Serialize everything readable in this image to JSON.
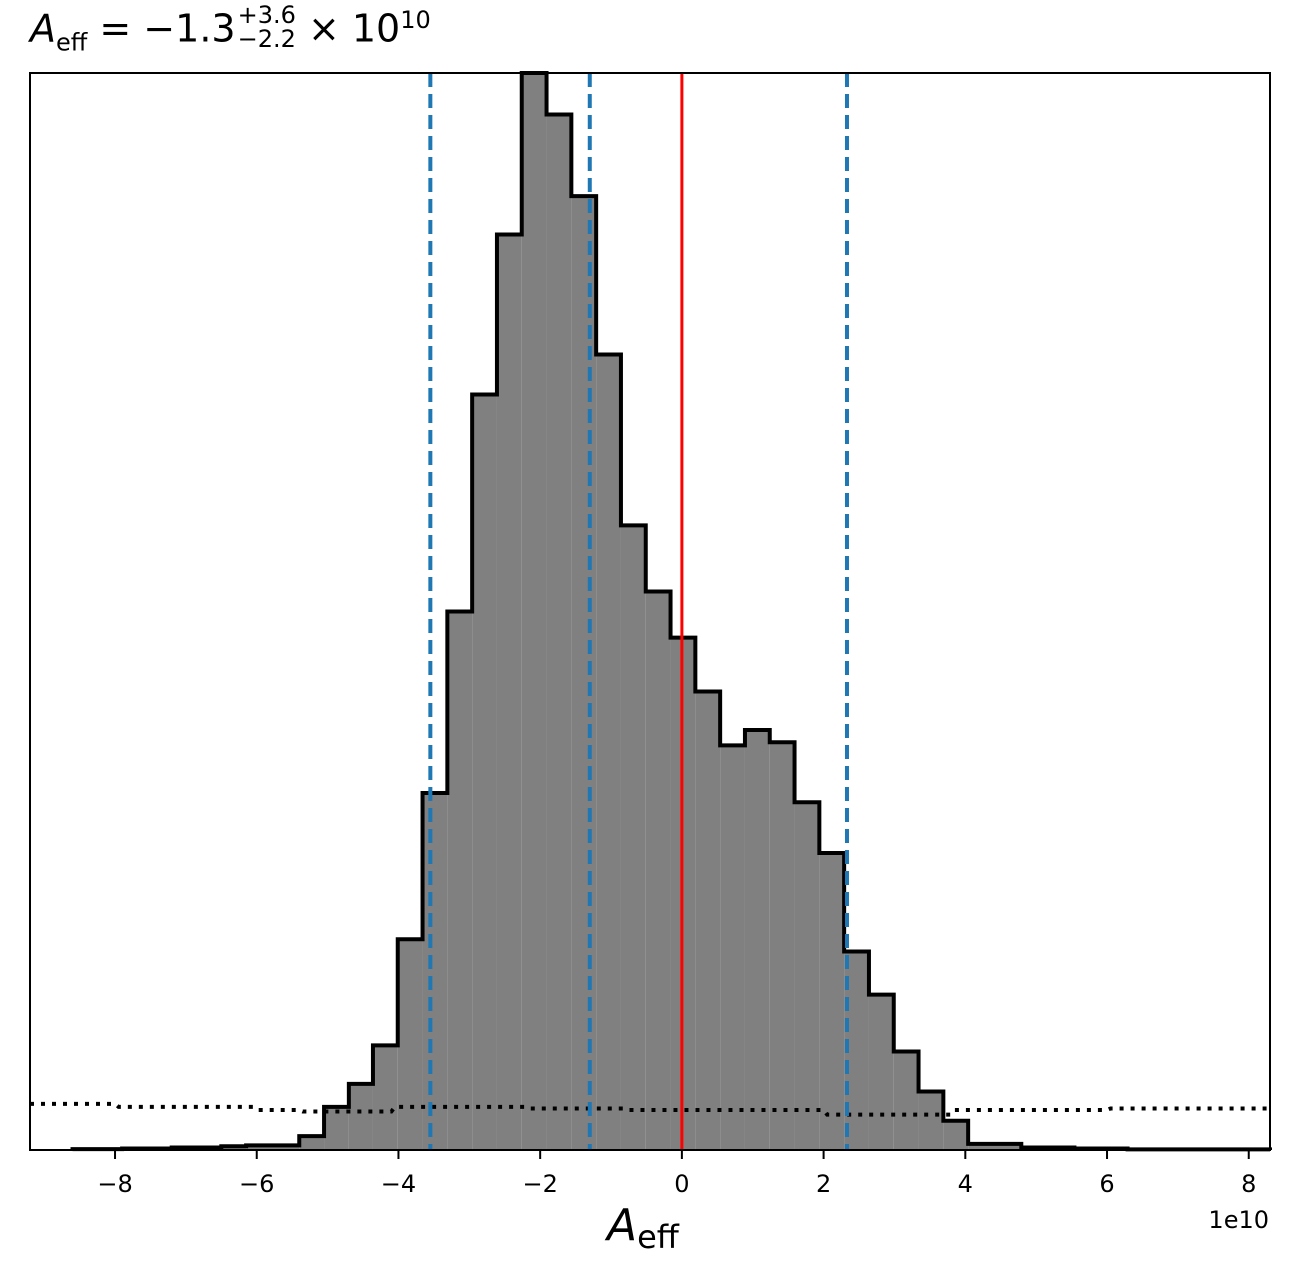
{
  "title": {
    "symbol": "A",
    "symbol_sub": "eff",
    "equals": " = −1.3",
    "sup": "+3.6",
    "sub": "−2.2",
    "tail": " × 10",
    "exp": "10"
  },
  "xlabel": {
    "symbol": "A",
    "sub": "eff"
  },
  "offset_text": "1e10",
  "colors": {
    "hist_fill": "#808080",
    "hist_edge": "#000000",
    "quantile_lines": "#1f77b4",
    "truth_line": "#ff0000",
    "prior_line": "#000000"
  },
  "chart_data": {
    "type": "histogram",
    "x_scale_factor": 10000000000.0,
    "xlim": [
      -9.2,
      8.3
    ],
    "ylim": [
      0,
      3500
    ],
    "xticks": [
      -8,
      -6,
      -4,
      -2,
      0,
      2,
      4,
      6,
      8
    ],
    "xtick_labels": [
      "−8",
      "−6",
      "−4",
      "−2",
      "0",
      "2",
      "4",
      "6",
      "8"
    ],
    "bins": [
      {
        "x0": -8.6,
        "x1": -7.9,
        "count": 3
      },
      {
        "x0": -7.9,
        "x1": -7.2,
        "count": 5
      },
      {
        "x0": -7.2,
        "x1": -6.5,
        "count": 8
      },
      {
        "x0": -6.5,
        "x1": -6.15,
        "count": 12
      },
      {
        "x0": -6.15,
        "x1": -5.4,
        "count": 15
      },
      {
        "x0": -5.4,
        "x1": -5.05,
        "count": 45
      },
      {
        "x0": -5.05,
        "x1": -4.7,
        "count": 140
      },
      {
        "x0": -4.7,
        "x1": -4.36,
        "count": 215
      },
      {
        "x0": -4.36,
        "x1": -4.01,
        "count": 340
      },
      {
        "x0": -4.01,
        "x1": -3.66,
        "count": 685
      },
      {
        "x0": -3.66,
        "x1": -3.31,
        "count": 1160
      },
      {
        "x0": -3.31,
        "x1": -2.96,
        "count": 1750
      },
      {
        "x0": -2.96,
        "x1": -2.61,
        "count": 2455
      },
      {
        "x0": -2.61,
        "x1": -2.26,
        "count": 2975
      },
      {
        "x0": -2.26,
        "x1": -1.91,
        "count": 3500
      },
      {
        "x0": -1.91,
        "x1": -1.56,
        "count": 3365
      },
      {
        "x0": -1.56,
        "x1": -1.21,
        "count": 3100
      },
      {
        "x0": -1.21,
        "x1": -0.86,
        "count": 2585
      },
      {
        "x0": -0.86,
        "x1": -0.51,
        "count": 2030
      },
      {
        "x0": -0.51,
        "x1": -0.16,
        "count": 1815
      },
      {
        "x0": -0.16,
        "x1": 0.19,
        "count": 1665
      },
      {
        "x0": 0.19,
        "x1": 0.54,
        "count": 1490
      },
      {
        "x0": 0.54,
        "x1": 0.89,
        "count": 1315
      },
      {
        "x0": 0.89,
        "x1": 1.24,
        "count": 1365
      },
      {
        "x0": 1.24,
        "x1": 1.59,
        "count": 1325
      },
      {
        "x0": 1.59,
        "x1": 1.94,
        "count": 1130
      },
      {
        "x0": 1.94,
        "x1": 2.29,
        "count": 965
      },
      {
        "x0": 2.29,
        "x1": 2.64,
        "count": 645
      },
      {
        "x0": 2.64,
        "x1": 2.99,
        "count": 505
      },
      {
        "x0": 2.99,
        "x1": 3.34,
        "count": 320
      },
      {
        "x0": 3.34,
        "x1": 3.69,
        "count": 190
      },
      {
        "x0": 3.69,
        "x1": 4.04,
        "count": 95
      },
      {
        "x0": 4.04,
        "x1": 4.79,
        "count": 20
      },
      {
        "x0": 4.79,
        "x1": 5.54,
        "count": 8
      },
      {
        "x0": 5.54,
        "x1": 6.29,
        "count": 5
      },
      {
        "x0": 6.29,
        "x1": 8.3,
        "count": 2
      }
    ],
    "quantile_lines": [
      -3.55,
      -1.3,
      2.33
    ],
    "truth_line": 0,
    "prior_curve": {
      "x": [
        -9.2,
        -8.0,
        -7.95,
        -6.05,
        -6.0,
        -5.4,
        -5.35,
        -4.1,
        -4.05,
        -2.2,
        -2.15,
        -0.8,
        -0.75,
        2.0,
        2.05,
        3.8,
        3.85,
        6.0,
        6.05,
        8.3
      ],
      "y": [
        150,
        150,
        140,
        140,
        130,
        130,
        125,
        125,
        140,
        140,
        135,
        135,
        130,
        130,
        115,
        115,
        130,
        130,
        135,
        135
      ]
    }
  }
}
